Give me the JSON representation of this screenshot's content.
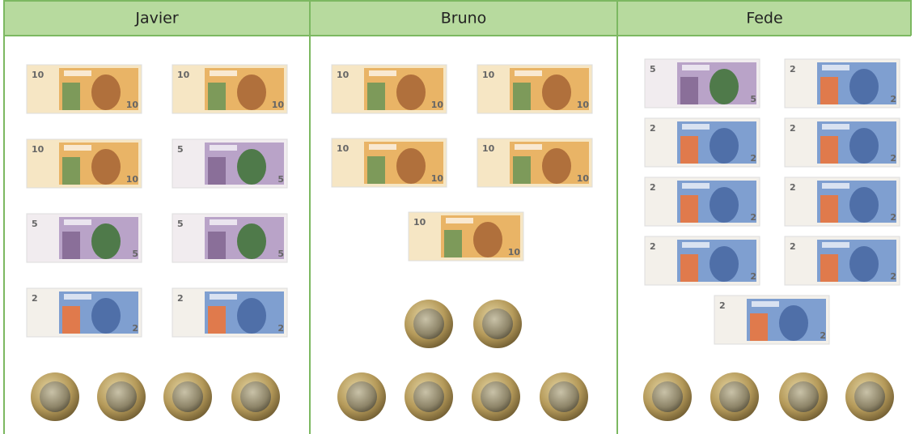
{
  "table": {
    "headers": [
      "Javier",
      "Bruno",
      "Fede"
    ],
    "columns": [
      {
        "notes": [
          10,
          10,
          10,
          5,
          5,
          5,
          2,
          2
        ]
      },
      {
        "notes": [
          10,
          10,
          10,
          10,
          10
        ]
      },
      {
        "notes": [
          5,
          2,
          2,
          2,
          2,
          2,
          2,
          2,
          2
        ]
      }
    ]
  }
}
